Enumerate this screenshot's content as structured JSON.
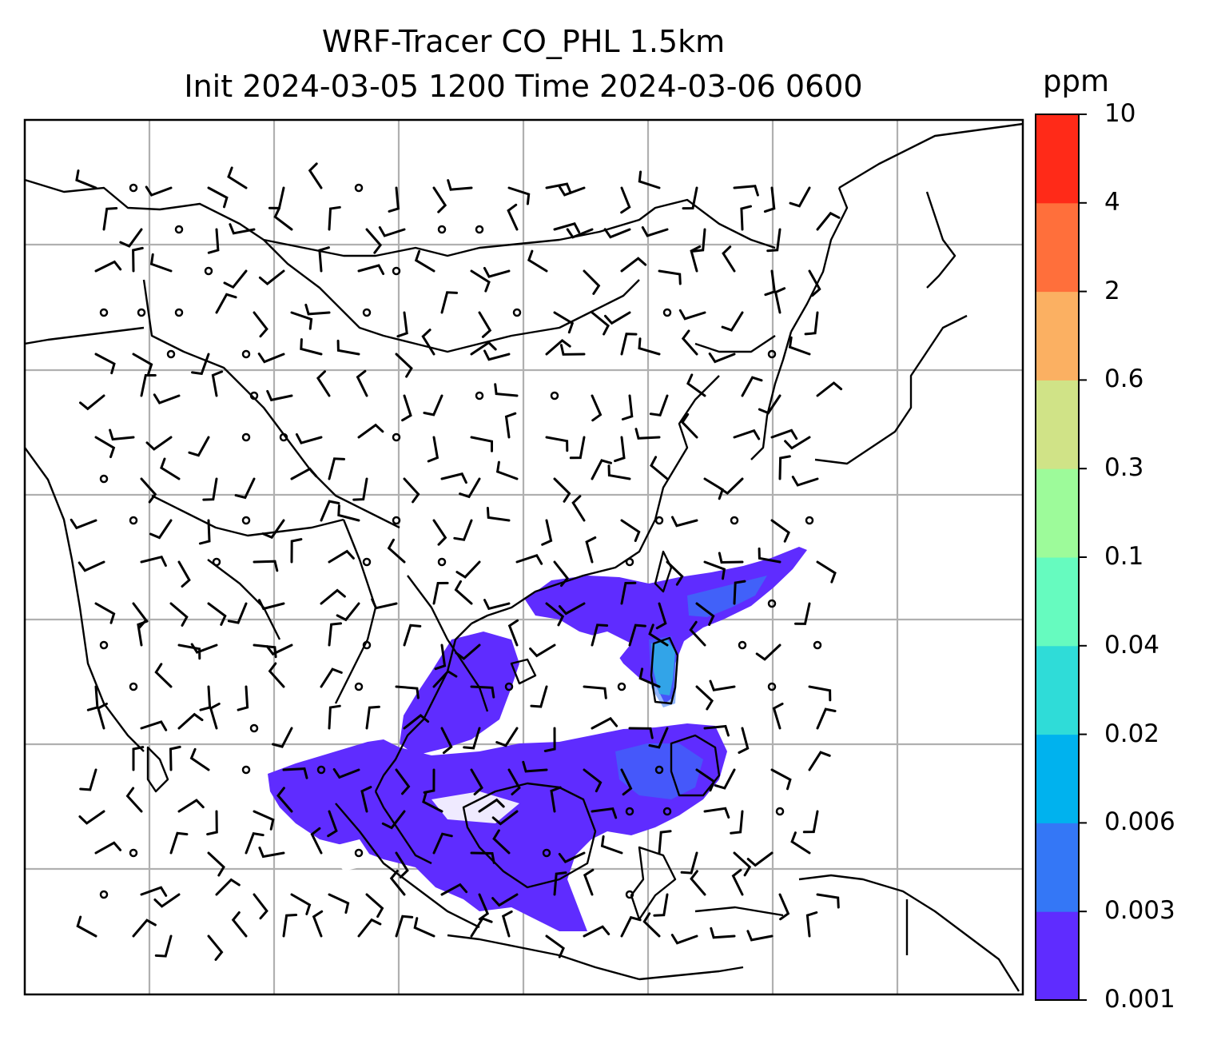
{
  "title": {
    "line1": "WRF-Tracer CO_PHL 1.5km",
    "line2": "Init 2024-03-05 1200 Time 2024-03-06 0600"
  },
  "colorbar": {
    "unit": "ppm",
    "levels": [
      "0.001",
      "0.003",
      "0.006",
      "0.02",
      "0.04",
      "0.1",
      "0.3",
      "0.6",
      "2",
      "4",
      "10"
    ],
    "colors": [
      "#5f2cff",
      "#3477f6",
      "#00b2ee",
      "#2fdcd8",
      "#66fbbf",
      "#9dfb9a",
      "#d0e387",
      "#fbb062",
      "#ff6f3b",
      "#ff2a18"
    ]
  },
  "map": {
    "region": "East and Southeast Asia",
    "features": [
      "coastlines",
      "country-borders",
      "lat-lon-gridlines",
      "wind-barbs",
      "tracer-concentration-plume"
    ],
    "plume_level": "0.001",
    "plume_core_level": "0.003"
  }
}
